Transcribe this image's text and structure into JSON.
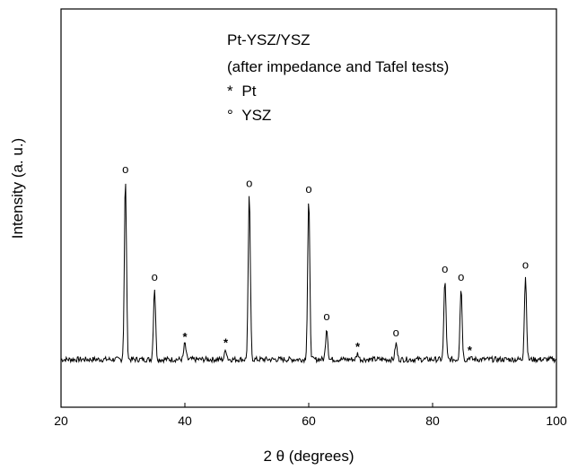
{
  "chart_data": {
    "type": "line",
    "xlabel": "2 θ (degrees)",
    "ylabel": "Intensity (a. u.)",
    "xlim": [
      20,
      100
    ],
    "ylim": [
      0,
      100
    ],
    "xticks": [
      20,
      40,
      60,
      80,
      100
    ],
    "grid": false,
    "legend_position": "top-right",
    "legend": {
      "title_line1": "Pt-YSZ/YSZ",
      "title_line2": "(after impedance and Tafel tests)",
      "entries": [
        {
          "symbol": "*",
          "label": "Pt"
        },
        {
          "symbol": "°",
          "label": "YSZ"
        }
      ]
    },
    "baseline": 12,
    "peaks": [
      {
        "x": 30.4,
        "y": 57,
        "phase": "YSZ"
      },
      {
        "x": 35.1,
        "y": 30,
        "phase": "YSZ"
      },
      {
        "x": 40.0,
        "y": 16,
        "phase": "Pt"
      },
      {
        "x": 46.6,
        "y": 14.5,
        "phase": "Pt"
      },
      {
        "x": 50.4,
        "y": 53.5,
        "phase": "YSZ"
      },
      {
        "x": 60.0,
        "y": 52,
        "phase": "YSZ"
      },
      {
        "x": 62.9,
        "y": 20,
        "phase": "YSZ"
      },
      {
        "x": 67.9,
        "y": 13.5,
        "phase": "Pt"
      },
      {
        "x": 74.1,
        "y": 16,
        "phase": "YSZ"
      },
      {
        "x": 82.0,
        "y": 32,
        "phase": "YSZ"
      },
      {
        "x": 84.6,
        "y": 30,
        "phase": "YSZ"
      },
      {
        "x": 86.0,
        "y": 12.6,
        "phase": "Pt"
      },
      {
        "x": 95.0,
        "y": 33,
        "phase": "YSZ"
      }
    ],
    "markers": {
      "Pt": "*",
      "YSZ": "°"
    }
  }
}
